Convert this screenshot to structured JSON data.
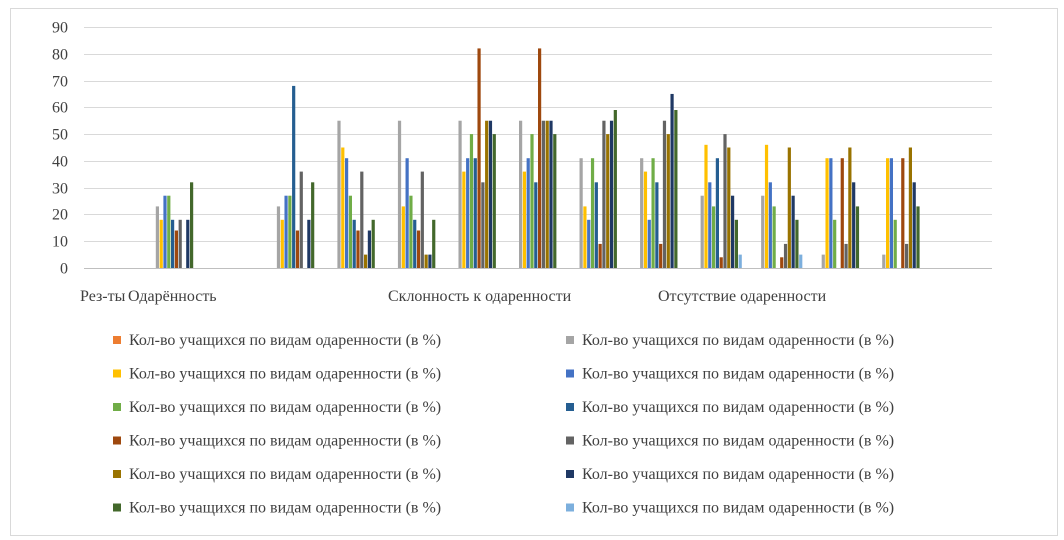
{
  "chart_data": {
    "type": "bar",
    "title": "",
    "xlabel": "",
    "ylabel": "",
    "ylim": [
      0,
      90
    ],
    "yticks": [
      0,
      10,
      20,
      30,
      40,
      50,
      60,
      70,
      80,
      90
    ],
    "grid": true,
    "legend_position": "bottom",
    "group_labels": [
      "Рез-ты",
      "Одарённость",
      "Склонность к одаренности",
      "Отсутствие одаренности"
    ],
    "categories": [
      "",
      "",
      "",
      "",
      "",
      "",
      "",
      "",
      "",
      "",
      "",
      "",
      "",
      "",
      ""
    ],
    "series": [
      {
        "name": "Кол-во учащихся по видам одаренности (в %)",
        "color": "#ED7D31",
        "values": [
          0,
          0,
          0,
          0,
          0,
          0,
          0,
          0,
          0,
          0,
          0,
          0,
          0,
          0,
          0
        ]
      },
      {
        "name": "Кол-во учащихся по видам одаренности (в %)",
        "color": "#A5A5A5",
        "values": [
          0,
          23,
          0,
          23,
          55,
          55,
          55,
          55,
          41,
          41,
          27,
          27,
          5,
          5,
          0
        ]
      },
      {
        "name": "Кол-во учащихся по видам одаренности (в %)",
        "color": "#FFC000",
        "values": [
          0,
          18,
          0,
          18,
          45,
          23,
          36,
          36,
          23,
          36,
          46,
          46,
          41,
          41,
          0
        ]
      },
      {
        "name": "Кол-во учащихся по видам одаренности (в %)",
        "color": "#4472C4",
        "values": [
          0,
          27,
          0,
          27,
          41,
          41,
          41,
          41,
          18,
          18,
          32,
          32,
          41,
          41,
          0
        ]
      },
      {
        "name": "Кол-во учащихся по видам одаренности (в %)",
        "color": "#70AD47",
        "values": [
          0,
          27,
          0,
          27,
          27,
          27,
          50,
          50,
          41,
          41,
          23,
          23,
          18,
          18,
          0
        ]
      },
      {
        "name": "Кол-во учащихся по видам одаренности (в %)",
        "color": "#255E91",
        "values": [
          0,
          18,
          0,
          68,
          18,
          18,
          41,
          32,
          32,
          32,
          41,
          0,
          0,
          0,
          0
        ]
      },
      {
        "name": "Кол-во учащихся по видам одаренности (в %)",
        "color": "#9E480E",
        "values": [
          0,
          14,
          0,
          14,
          14,
          14,
          82,
          82,
          9,
          9,
          4,
          4,
          41,
          41,
          0
        ]
      },
      {
        "name": "Кол-во учащихся по видам одаренности (в %)",
        "color": "#636363",
        "values": [
          0,
          18,
          0,
          36,
          36,
          36,
          32,
          55,
          55,
          55,
          50,
          9,
          9,
          9,
          0
        ]
      },
      {
        "name": "Кол-во учащихся по видам одаренности (в %)",
        "color": "#997300",
        "values": [
          0,
          0,
          0,
          0,
          5,
          5,
          55,
          55,
          50,
          50,
          45,
          45,
          45,
          45,
          0
        ]
      },
      {
        "name": "Кол-во учащихся по видам одаренности (в %)",
        "color": "#1F3864",
        "values": [
          0,
          18,
          0,
          18,
          14,
          5,
          55,
          55,
          55,
          65,
          27,
          27,
          32,
          32,
          0
        ]
      },
      {
        "name": "Кол-во учащихся по видам одаренности (в %)",
        "color": "#43682B",
        "values": [
          0,
          32,
          0,
          32,
          18,
          18,
          50,
          50,
          59,
          59,
          18,
          18,
          23,
          23,
          0
        ]
      },
      {
        "name": "Кол-во учащихся по видам одаренности (в %)",
        "color": "#7CAFDD",
        "values": [
          0,
          0,
          0,
          0,
          0,
          0,
          0,
          0,
          0,
          0,
          5,
          5,
          0,
          0,
          0
        ]
      }
    ]
  }
}
